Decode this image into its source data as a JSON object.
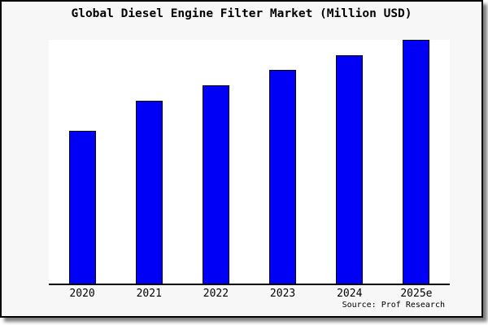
{
  "chart_data": {
    "type": "bar",
    "title": "Global Diesel Engine Filter Market (Million USD)",
    "categories": [
      "2020",
      "2021",
      "2022",
      "2023",
      "2024",
      "2025e"
    ],
    "values": [
      62.8,
      75.1,
      81.5,
      87.8,
      93.8,
      100
    ],
    "value_units": "relative index (y-axis unlabeled, values estimated from bar heights)",
    "xlabel": "",
    "ylabel": "",
    "ylim": [
      0,
      100
    ],
    "grid": false,
    "legend": false,
    "source_note": "Source: Prof Research",
    "colors": {
      "bar_fill": "#0000f7",
      "bar_border": "#000000",
      "axis": "#000000",
      "frame_background": "#f7f7f7",
      "plot_background": "#ffffff",
      "text": "#000000"
    }
  }
}
